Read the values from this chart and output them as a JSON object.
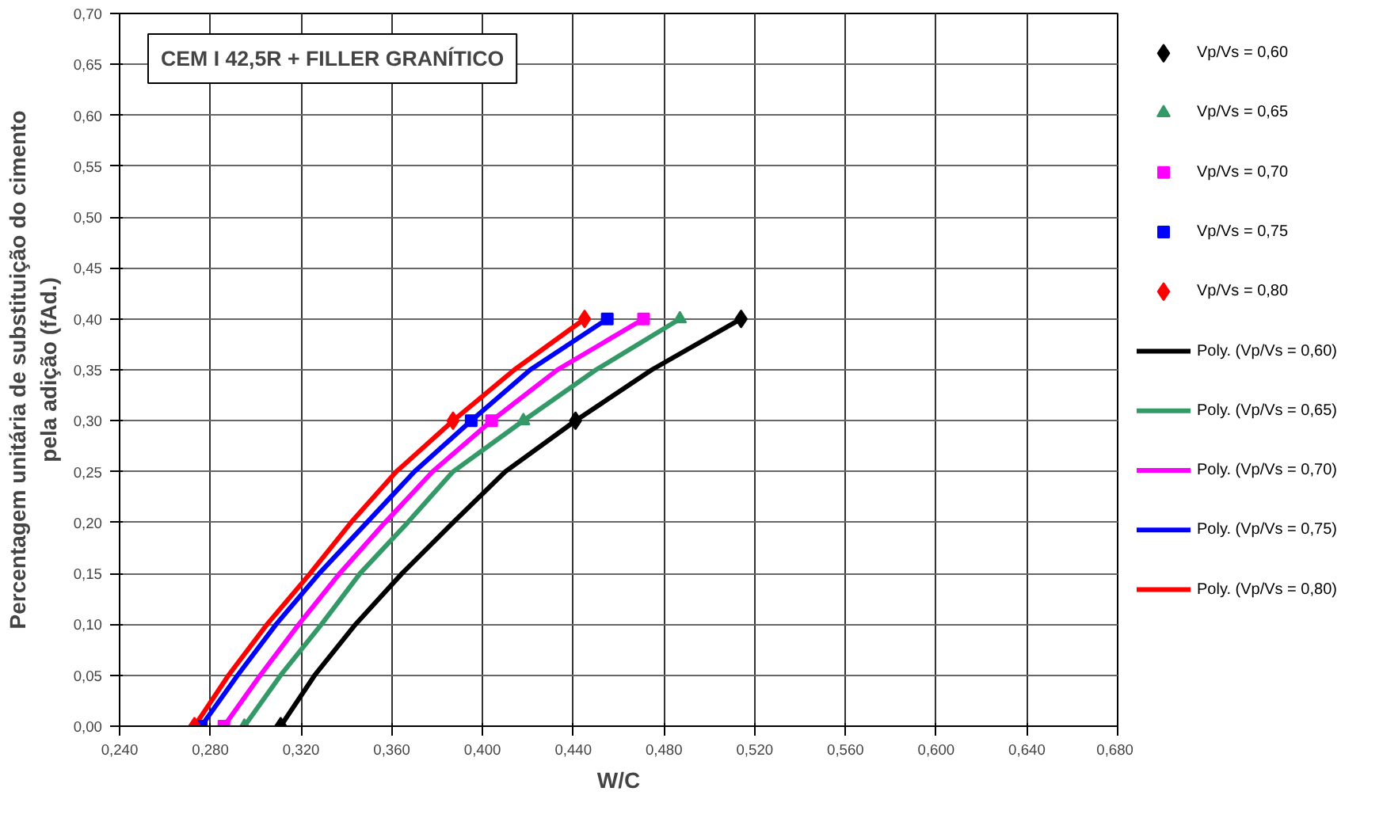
{
  "chart_data": {
    "type": "scatter",
    "title": "CEM I 42,5R + FILLER GRANÍTICO",
    "xlabel": "W/C",
    "ylabel": "Percentagem unitária de substituição do cimento\npela adição (fAd.)",
    "xlim": [
      0.24,
      0.68
    ],
    "ylim": [
      0,
      0.7
    ],
    "xticks": [
      {
        "value": 0.24,
        "label": "0,240"
      },
      {
        "value": 0.28,
        "label": "0,280"
      },
      {
        "value": 0.32,
        "label": "0,320"
      },
      {
        "value": 0.36,
        "label": "0,360"
      },
      {
        "value": 0.4,
        "label": "0,400"
      },
      {
        "value": 0.44,
        "label": "0,440"
      },
      {
        "value": 0.48,
        "label": "0,480"
      },
      {
        "value": 0.52,
        "label": "0,520"
      },
      {
        "value": 0.56,
        "label": "0,560"
      },
      {
        "value": 0.6,
        "label": "0,600"
      },
      {
        "value": 0.64,
        "label": "0,640"
      },
      {
        "value": 0.68,
        "label": "0,680"
      }
    ],
    "yticks": [
      {
        "value": 0,
        "label": "0,00"
      },
      {
        "value": 0.05,
        "label": "0,05"
      },
      {
        "value": 0.1,
        "label": "0,10"
      },
      {
        "value": 0.15,
        "label": "0,15"
      },
      {
        "value": 0.2,
        "label": "0,20"
      },
      {
        "value": 0.25,
        "label": "0,25"
      },
      {
        "value": 0.3,
        "label": "0,30"
      },
      {
        "value": 0.35,
        "label": "0,35"
      },
      {
        "value": 0.4,
        "label": "0,40"
      },
      {
        "value": 0.45,
        "label": "0,45"
      },
      {
        "value": 0.5,
        "label": "0,50"
      },
      {
        "value": 0.55,
        "label": "0,55"
      },
      {
        "value": 0.6,
        "label": "0,60"
      },
      {
        "value": 0.65,
        "label": "0,65"
      },
      {
        "value": 0.7,
        "label": "0,70"
      }
    ],
    "grid": true,
    "legend": "right",
    "series": [
      {
        "name": "Vp/Vs = 0,60",
        "marker": "diamond",
        "color": "#000000",
        "x": [
          0.311,
          0.441,
          0.514
        ],
        "values": [
          0,
          0.3,
          0.4
        ]
      },
      {
        "name": "Vp/Vs = 0,65",
        "marker": "triangle",
        "color": "#339966",
        "x": [
          0.295,
          0.418,
          0.487
        ],
        "values": [
          0,
          0.3,
          0.4
        ]
      },
      {
        "name": "Vp/Vs = 0,70",
        "marker": "square",
        "color": "#ff00ff",
        "x": [
          0.286,
          0.404,
          0.471
        ],
        "values": [
          0,
          0.3,
          0.4
        ]
      },
      {
        "name": "Vp/Vs = 0,75",
        "marker": "square",
        "color": "#0000ff",
        "x": [
          0.276,
          0.395,
          0.455
        ],
        "values": [
          0,
          0.3,
          0.4
        ]
      },
      {
        "name": "Vp/Vs = 0,80",
        "marker": "diamond",
        "color": "#ff0000",
        "x": [
          0.273,
          0.387,
          0.445
        ],
        "values": [
          0,
          0.3,
          0.4
        ]
      },
      {
        "name": "Poly. (Vp/Vs = 0,60)",
        "type": "line",
        "color": "#000000",
        "x": [
          0.311,
          0.326,
          0.344,
          0.3645,
          0.387,
          0.41,
          0.441,
          0.4746,
          0.514
        ],
        "values": [
          0,
          0.05,
          0.1,
          0.15,
          0.2,
          0.25,
          0.3,
          0.35,
          0.4
        ]
      },
      {
        "name": "Poly. (Vp/Vs = 0,65)",
        "type": "line",
        "color": "#339966",
        "x": [
          0.295,
          0.311,
          0.329,
          0.346,
          0.367,
          0.387,
          0.418,
          0.45,
          0.487
        ],
        "values": [
          0,
          0.05,
          0.1,
          0.15,
          0.2,
          0.25,
          0.3,
          0.35,
          0.4
        ]
      },
      {
        "name": "Poly. (Vp/Vs = 0,70)",
        "type": "line",
        "color": "#ff00ff",
        "x": [
          0.286,
          0.302,
          0.319,
          0.337,
          0.357,
          0.378,
          0.404,
          0.433,
          0.471
        ],
        "values": [
          0,
          0.05,
          0.1,
          0.15,
          0.2,
          0.25,
          0.3,
          0.35,
          0.4
        ]
      },
      {
        "name": "Poly. (Vp/Vs = 0,75)",
        "type": "line",
        "color": "#0000ff",
        "x": [
          0.276,
          0.292,
          0.309,
          0.328,
          0.349,
          0.37,
          0.395,
          0.421,
          0.455
        ],
        "values": [
          0,
          0.05,
          0.1,
          0.15,
          0.2,
          0.25,
          0.3,
          0.35,
          0.4
        ]
      },
      {
        "name": "Poly. (Vp/Vs = 0,80)",
        "type": "line",
        "color": "#ff0000",
        "x": [
          0.273,
          0.288,
          0.305,
          0.324,
          0.342,
          0.362,
          0.387,
          0.414,
          0.445
        ],
        "values": [
          0,
          0.05,
          0.1,
          0.15,
          0.2,
          0.25,
          0.3,
          0.35,
          0.4
        ]
      }
    ]
  }
}
